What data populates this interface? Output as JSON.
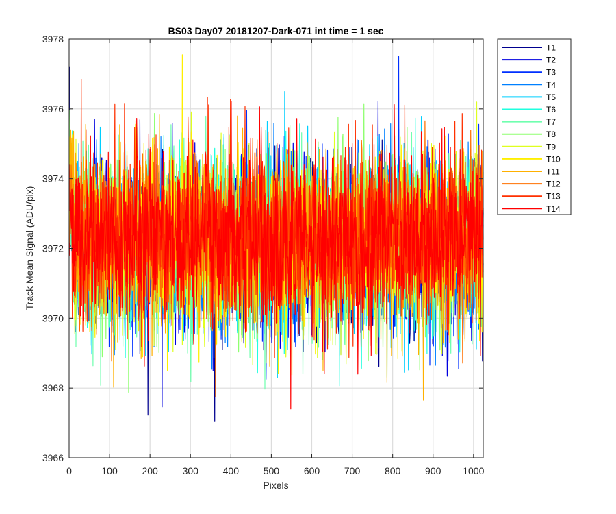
{
  "chart_data": {
    "type": "line",
    "title": "BS03 Day07 20181207-Dark-071 int time = 1 sec",
    "xlabel": "Pixels",
    "ylabel": "Track Mean Signal (ADU/pix)",
    "xlim": [
      0,
      1024
    ],
    "ylim": [
      3966,
      3978
    ],
    "xticks": [
      0,
      100,
      200,
      300,
      400,
      500,
      600,
      700,
      800,
      900,
      1000
    ],
    "yticks": [
      3966,
      3968,
      3970,
      3972,
      3974,
      3976,
      3978
    ],
    "grid": true,
    "legend_position": "outside-top-right",
    "x_points": 1024,
    "approx_mean": 3972.2,
    "approx_noise_std": 1.2,
    "notable_extremes": [
      {
        "x": 815,
        "y": 3977.5,
        "series": "T3"
      },
      {
        "x": 280,
        "y": 3977.55,
        "series": "T10"
      },
      {
        "x": 548,
        "y": 3967.4,
        "series": "T14"
      },
      {
        "x": 362,
        "y": 3967.75,
        "series": "T12"
      },
      {
        "x": 876,
        "y": 3967.65,
        "series": "T11"
      }
    ],
    "series": [
      {
        "name": "T1",
        "color": "#00008F"
      },
      {
        "name": "T2",
        "color": "#0000DF"
      },
      {
        "name": "T3",
        "color": "#0030FF"
      },
      {
        "name": "T4",
        "color": "#0080FF"
      },
      {
        "name": "T5",
        "color": "#00CFFF"
      },
      {
        "name": "T6",
        "color": "#20FFDF"
      },
      {
        "name": "T7",
        "color": "#70FFAF"
      },
      {
        "name": "T8",
        "color": "#8FFF70"
      },
      {
        "name": "T9",
        "color": "#DFFF20"
      },
      {
        "name": "T10",
        "color": "#FFEF00"
      },
      {
        "name": "T11",
        "color": "#FFB000"
      },
      {
        "name": "T12",
        "color": "#FF7000"
      },
      {
        "name": "T13",
        "color": "#FF3000"
      },
      {
        "name": "T14",
        "color": "#FF0000"
      }
    ]
  }
}
